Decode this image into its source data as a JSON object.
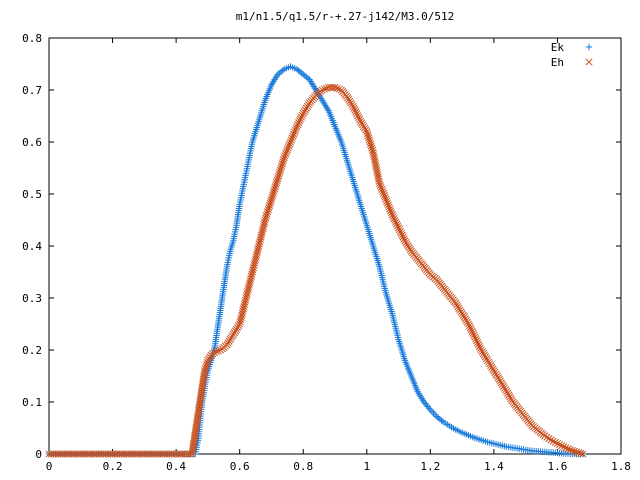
{
  "chart_data": {
    "type": "scatter",
    "title": "m1/n1.5/q1.5/r-+.27-j142/M3.0/512",
    "xlabel": "",
    "ylabel": "",
    "xlim": [
      0,
      1.8
    ],
    "ylim": [
      0,
      0.8
    ],
    "grid": false,
    "legend_position": "top-right",
    "xticks": [
      "0",
      "0.2",
      "0.4",
      "0.6",
      "0.8",
      "1",
      "1.2",
      "1.4",
      "1.6",
      "1.8"
    ],
    "yticks": [
      "0",
      "0.1",
      "0.2",
      "0.3",
      "0.4",
      "0.5",
      "0.6",
      "0.7",
      "0.8"
    ],
    "series": [
      {
        "name": "Ek",
        "marker": "plus",
        "color": "#1a7bdc",
        "points": [
          [
            0.0,
            0.0
          ],
          [
            0.1,
            0.0
          ],
          [
            0.2,
            0.0
          ],
          [
            0.3,
            0.0
          ],
          [
            0.4,
            0.0
          ],
          [
            0.46,
            0.0
          ],
          [
            0.47,
            0.03
          ],
          [
            0.48,
            0.09
          ],
          [
            0.49,
            0.13
          ],
          [
            0.5,
            0.16
          ],
          [
            0.51,
            0.18
          ],
          [
            0.52,
            0.2
          ],
          [
            0.53,
            0.24
          ],
          [
            0.54,
            0.28
          ],
          [
            0.55,
            0.32
          ],
          [
            0.56,
            0.36
          ],
          [
            0.57,
            0.39
          ],
          [
            0.58,
            0.41
          ],
          [
            0.59,
            0.44
          ],
          [
            0.6,
            0.48
          ],
          [
            0.62,
            0.54
          ],
          [
            0.64,
            0.6
          ],
          [
            0.66,
            0.64
          ],
          [
            0.68,
            0.68
          ],
          [
            0.7,
            0.71
          ],
          [
            0.72,
            0.73
          ],
          [
            0.74,
            0.74
          ],
          [
            0.76,
            0.745
          ],
          [
            0.78,
            0.74
          ],
          [
            0.8,
            0.73
          ],
          [
            0.82,
            0.72
          ],
          [
            0.84,
            0.7
          ],
          [
            0.86,
            0.68
          ],
          [
            0.88,
            0.66
          ],
          [
            0.9,
            0.63
          ],
          [
            0.92,
            0.6
          ],
          [
            0.94,
            0.56
          ],
          [
            0.96,
            0.52
          ],
          [
            0.98,
            0.48
          ],
          [
            1.0,
            0.44
          ],
          [
            1.02,
            0.4
          ],
          [
            1.04,
            0.36
          ],
          [
            1.06,
            0.31
          ],
          [
            1.08,
            0.27
          ],
          [
            1.1,
            0.22
          ],
          [
            1.12,
            0.18
          ],
          [
            1.14,
            0.15
          ],
          [
            1.16,
            0.12
          ],
          [
            1.18,
            0.1
          ],
          [
            1.2,
            0.085
          ],
          [
            1.22,
            0.072
          ],
          [
            1.24,
            0.062
          ],
          [
            1.26,
            0.054
          ],
          [
            1.28,
            0.047
          ],
          [
            1.3,
            0.041
          ],
          [
            1.32,
            0.036
          ],
          [
            1.34,
            0.031
          ],
          [
            1.36,
            0.027
          ],
          [
            1.38,
            0.023
          ],
          [
            1.4,
            0.02
          ],
          [
            1.42,
            0.017
          ],
          [
            1.44,
            0.014
          ],
          [
            1.46,
            0.012
          ],
          [
            1.48,
            0.01
          ],
          [
            1.5,
            0.008
          ],
          [
            1.52,
            0.006
          ],
          [
            1.54,
            0.005
          ],
          [
            1.56,
            0.004
          ],
          [
            1.58,
            0.003
          ],
          [
            1.6,
            0.002
          ],
          [
            1.62,
            0.001
          ],
          [
            1.64,
            0.0005
          ],
          [
            1.66,
            0.0
          ],
          [
            1.68,
            0.0
          ]
        ]
      },
      {
        "name": "Eh",
        "marker": "cross",
        "color": "#c8501e",
        "points": [
          [
            0.0,
            0.0
          ],
          [
            0.1,
            0.0
          ],
          [
            0.2,
            0.0
          ],
          [
            0.3,
            0.0
          ],
          [
            0.4,
            0.0
          ],
          [
            0.45,
            0.0
          ],
          [
            0.46,
            0.04
          ],
          [
            0.47,
            0.08
          ],
          [
            0.48,
            0.12
          ],
          [
            0.49,
            0.16
          ],
          [
            0.5,
            0.18
          ],
          [
            0.51,
            0.19
          ],
          [
            0.52,
            0.195
          ],
          [
            0.54,
            0.2
          ],
          [
            0.56,
            0.21
          ],
          [
            0.58,
            0.23
          ],
          [
            0.6,
            0.25
          ],
          [
            0.62,
            0.3
          ],
          [
            0.64,
            0.35
          ],
          [
            0.66,
            0.4
          ],
          [
            0.68,
            0.45
          ],
          [
            0.7,
            0.49
          ],
          [
            0.72,
            0.53
          ],
          [
            0.74,
            0.57
          ],
          [
            0.76,
            0.6
          ],
          [
            0.78,
            0.63
          ],
          [
            0.8,
            0.655
          ],
          [
            0.82,
            0.675
          ],
          [
            0.84,
            0.69
          ],
          [
            0.86,
            0.7
          ],
          [
            0.88,
            0.705
          ],
          [
            0.9,
            0.705
          ],
          [
            0.92,
            0.7
          ],
          [
            0.94,
            0.685
          ],
          [
            0.96,
            0.665
          ],
          [
            0.98,
            0.64
          ],
          [
            1.0,
            0.62
          ],
          [
            1.02,
            0.58
          ],
          [
            1.04,
            0.52
          ],
          [
            1.06,
            0.49
          ],
          [
            1.08,
            0.46
          ],
          [
            1.1,
            0.435
          ],
          [
            1.12,
            0.41
          ],
          [
            1.14,
            0.39
          ],
          [
            1.16,
            0.375
          ],
          [
            1.18,
            0.36
          ],
          [
            1.2,
            0.345
          ],
          [
            1.22,
            0.335
          ],
          [
            1.24,
            0.32
          ],
          [
            1.26,
            0.305
          ],
          [
            1.28,
            0.29
          ],
          [
            1.3,
            0.27
          ],
          [
            1.32,
            0.25
          ],
          [
            1.34,
            0.225
          ],
          [
            1.36,
            0.2
          ],
          [
            1.38,
            0.18
          ],
          [
            1.4,
            0.16
          ],
          [
            1.42,
            0.14
          ],
          [
            1.44,
            0.12
          ],
          [
            1.46,
            0.1
          ],
          [
            1.48,
            0.085
          ],
          [
            1.5,
            0.07
          ],
          [
            1.52,
            0.055
          ],
          [
            1.54,
            0.045
          ],
          [
            1.56,
            0.035
          ],
          [
            1.58,
            0.027
          ],
          [
            1.6,
            0.02
          ],
          [
            1.62,
            0.014
          ],
          [
            1.64,
            0.008
          ],
          [
            1.66,
            0.004
          ],
          [
            1.68,
            0.0
          ]
        ]
      }
    ]
  }
}
